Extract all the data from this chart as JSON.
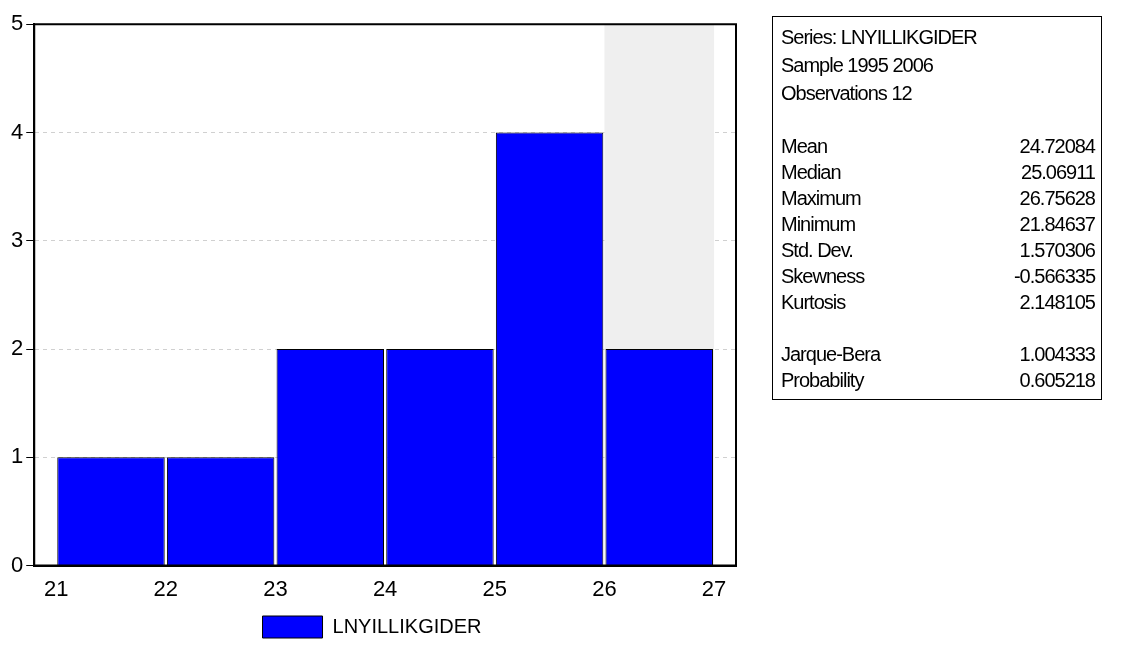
{
  "chart_data": [
    {
      "type": "histogram",
      "bins": [
        21,
        22,
        23,
        24,
        25,
        26,
        27
      ],
      "series": [
        {
          "name": "LNYILLIKGIDER",
          "color": "#0000ff",
          "values": [
            1,
            1,
            2,
            2,
            4,
            2
          ]
        }
      ],
      "xlim": [
        20.8,
        27.2
      ],
      "xticks": [
        21,
        22,
        23,
        24,
        25,
        26,
        27
      ],
      "ylim": [
        0,
        5
      ],
      "yticks": [
        0,
        1,
        2,
        3,
        4,
        5
      ],
      "grid": "y",
      "legend": "bottom",
      "bands": [
        {
          "axis": "x",
          "from": 26,
          "to": 27,
          "color": "#efefef"
        }
      ]
    },
    {
      "type": "other",
      "annotations": [
        "Series: LNYILLIKGIDER",
        "Sample 1995 2006",
        "Observations 12"
      ],
      "categories": [
        "Mean",
        "Median",
        "Maximum",
        "Minimum",
        "Std. Dev.",
        "Skewness",
        "Kurtosis",
        "Jarque-Bera",
        "Probability"
      ],
      "value_labels": [
        "24.72084",
        "25.06911",
        "26.75628",
        "21.84637",
        "1.570306",
        "-0.566335",
        "2.148105",
        "1.004333",
        "0.605218"
      ]
    }
  ]
}
